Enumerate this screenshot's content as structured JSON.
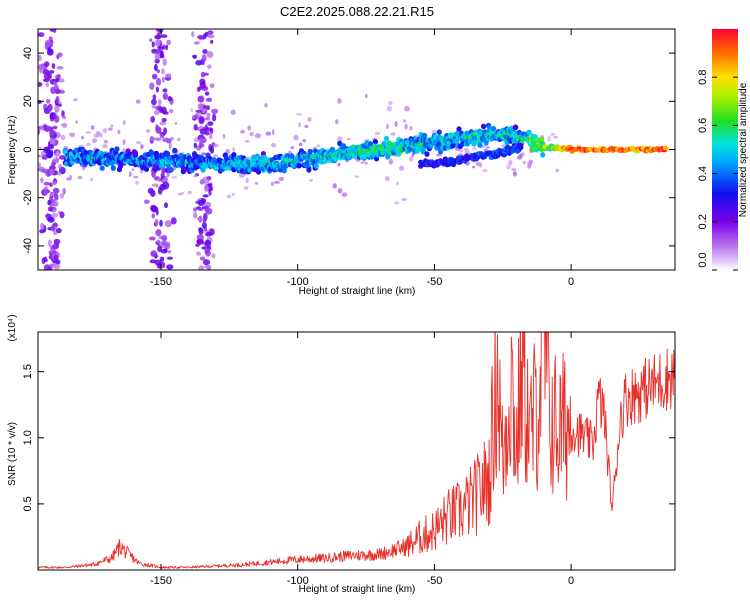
{
  "title": "C2E2.2025.088.22.21.R15",
  "chart_data": [
    {
      "type": "heatmap",
      "title": "",
      "xlabel": "Height of straight line (km)",
      "ylabel": "Frequency (Hz)",
      "xlim": [
        -195,
        38
      ],
      "ylim": [
        -50,
        50
      ],
      "xticks": [
        -150,
        -100,
        -50,
        0
      ],
      "yticks": [
        -40,
        -20,
        0,
        20,
        40
      ],
      "grid": false,
      "colormap": "rainbow (white-purple-blue-cyan-green-yellow-red)",
      "colorbar": {
        "label": "Normalized spectral amplitude",
        "range": [
          0.0,
          1.0
        ],
        "ticks": [
          0.0,
          0.2,
          0.4,
          0.6,
          0.8
        ]
      },
      "ridge": {
        "x": [
          -185,
          -160,
          -130,
          -110,
          -90,
          -70,
          -50,
          -30,
          -20,
          -10,
          0,
          10,
          20,
          35
        ],
        "y": [
          -3,
          -4,
          -6,
          -6,
          -3,
          0,
          3,
          6,
          6,
          1,
          0,
          0,
          0,
          0
        ],
        "amplitude": [
          0.45,
          0.42,
          0.45,
          0.5,
          0.5,
          0.55,
          0.5,
          0.5,
          0.5,
          0.7,
          0.95,
          0.95,
          0.9,
          0.95
        ]
      },
      "secondary_ridge": {
        "x": [
          -55,
          -45,
          -35,
          -25,
          -18
        ],
        "y": [
          -6,
          -5,
          -3,
          -1,
          1
        ],
        "amplitude": [
          0.3,
          0.3,
          0.35,
          0.35,
          0.3
        ]
      },
      "noise_bands_x": [
        -190,
        -150,
        -135
      ]
    },
    {
      "type": "line",
      "title": "",
      "xlabel": "Height of straight line (km)",
      "ylabel": "SNR (10 * v/v)",
      "y_multiplier": "(x10⁴)",
      "xlim": [
        -195,
        38
      ],
      "ylim": [
        0,
        1.8
      ],
      "xticks": [
        -150,
        -100,
        -50,
        0
      ],
      "yticks": [
        0.5,
        1.0,
        1.5
      ],
      "ytick_labels": [
        "0.5",
        "1.0",
        "1.5"
      ],
      "grid": false,
      "series_color": "#e8302a",
      "series": [
        {
          "x": [
            -195,
            -185,
            -175,
            -168,
            -165,
            -162,
            -158,
            -150,
            -140,
            -130,
            -120,
            -110,
            -100,
            -90,
            -80,
            -70,
            -60,
            -55,
            -50,
            -45,
            -40,
            -35,
            -30,
            -27,
            -25,
            -22,
            -20,
            -18,
            -15,
            -12,
            -10,
            -8,
            -6,
            -4,
            -2,
            0,
            2,
            5,
            8,
            10,
            12,
            15,
            18,
            20,
            25,
            30,
            35,
            38
          ],
          "y": [
            0.02,
            0.02,
            0.04,
            0.09,
            0.18,
            0.12,
            0.05,
            0.02,
            0.02,
            0.03,
            0.04,
            0.06,
            0.08,
            0.09,
            0.11,
            0.12,
            0.18,
            0.25,
            0.3,
            0.4,
            0.45,
            0.55,
            0.7,
            1.55,
            0.8,
            1.5,
            0.9,
            1.6,
            1.0,
            1.3,
            1.75,
            1.2,
            1.1,
            1.05,
            1.1,
            1.1,
            1.05,
            1.0,
            0.95,
            1.3,
            1.2,
            0.45,
            1.15,
            1.3,
            1.35,
            1.4,
            1.45,
            1.48
          ]
        }
      ]
    }
  ]
}
